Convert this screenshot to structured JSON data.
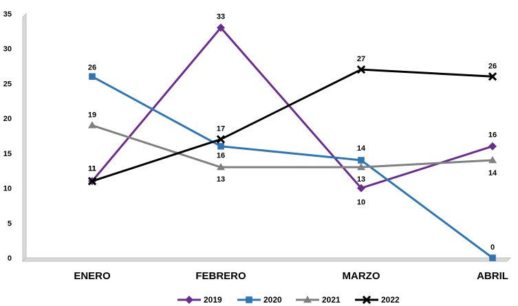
{
  "chart_data": {
    "type": "line",
    "categories": [
      "ENERO",
      "FEBRERO",
      "MARZO",
      "ABRIL"
    ],
    "series": [
      {
        "name": "2019",
        "values": [
          11,
          33,
          10,
          16
        ],
        "color": "#6A2C8F",
        "marker": "diamond"
      },
      {
        "name": "2020",
        "values": [
          26,
          16,
          14,
          0
        ],
        "color": "#2E75B6",
        "marker": "square"
      },
      {
        "name": "2021",
        "values": [
          19,
          13,
          13,
          14
        ],
        "color": "#7F7F7F",
        "marker": "triangle"
      },
      {
        "name": "2022",
        "values": [
          11,
          17,
          27,
          26
        ],
        "color": "#000000",
        "marker": "x"
      }
    ],
    "ylim": [
      0,
      35
    ],
    "yticks": [
      0,
      5,
      10,
      15,
      20,
      25,
      30,
      35
    ],
    "grid": false,
    "legend": "bottom"
  }
}
